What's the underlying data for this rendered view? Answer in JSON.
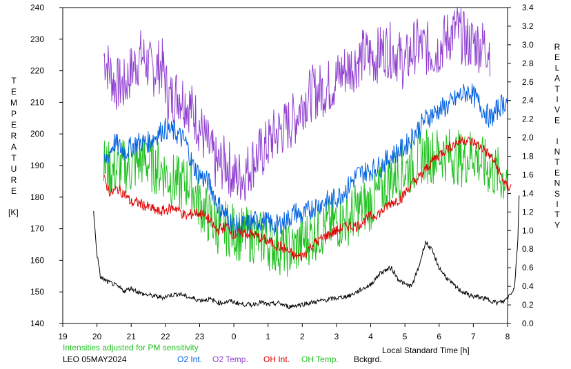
{
  "chart_data": {
    "type": "line",
    "title": "",
    "note": "Intensities adjusted for PM sensitivity",
    "station_label": "LEO 05MAY2024",
    "xlabel": "Local Standard Time [h]",
    "ylabel_left_letters": [
      "T",
      "E",
      "M",
      "P",
      "E",
      "R",
      "A",
      "T",
      "U",
      "R",
      "E"
    ],
    "ylabel_left_unit": "[K]",
    "ylabel_right_letters": [
      "R",
      "E",
      "L",
      "A",
      "T",
      "I",
      "V",
      "E",
      " ",
      "I",
      "N",
      "T",
      "E",
      "N",
      "S",
      "I",
      "T",
      "Y"
    ],
    "x_ticks": [
      "19",
      "20",
      "21",
      "22",
      "23",
      "0",
      "1",
      "2",
      "3",
      "4",
      "5",
      "6",
      "7",
      "8"
    ],
    "y_left_ticks": [
      "140",
      "150",
      "160",
      "170",
      "180",
      "190",
      "200",
      "210",
      "220",
      "230",
      "240"
    ],
    "y_right_ticks": [
      "0.0",
      "0.2",
      "0.4",
      "0.6",
      "0.8",
      "1.0",
      "1.2",
      "1.4",
      "1.6",
      "1.8",
      "2.0",
      "2.2",
      "2.4",
      "2.6",
      "2.8",
      "3.0",
      "3.2",
      "3.4"
    ],
    "xlim": [
      19,
      32
    ],
    "ylim_left": [
      140,
      240
    ],
    "ylim_right": [
      0,
      3.4
    ],
    "grid": false,
    "legend_position": "bottom",
    "series": [
      {
        "name": "O2 Int.",
        "axis": "right",
        "color": "#0060e0",
        "style": "vertical-hatch",
        "points": [
          [
            20.2,
            1.7
          ],
          [
            20.5,
            1.95
          ],
          [
            20.8,
            1.85
          ],
          [
            21.0,
            1.9
          ],
          [
            21.2,
            1.95
          ],
          [
            21.5,
            1.95
          ],
          [
            21.8,
            2.05
          ],
          [
            22.0,
            2.1
          ],
          [
            22.3,
            2.05
          ],
          [
            22.6,
            1.95
          ],
          [
            22.8,
            1.7
          ],
          [
            23.0,
            1.6
          ],
          [
            23.3,
            1.5
          ],
          [
            23.5,
            1.3
          ],
          [
            23.8,
            1.15
          ],
          [
            24.0,
            1.05
          ],
          [
            24.3,
            1.05
          ],
          [
            24.6,
            1.1
          ],
          [
            24.9,
            1.1
          ],
          [
            25.2,
            1.05
          ],
          [
            25.5,
            1.1
          ],
          [
            25.8,
            1.2
          ],
          [
            26.0,
            1.15
          ],
          [
            26.3,
            1.25
          ],
          [
            26.6,
            1.3
          ],
          [
            27.0,
            1.35
          ],
          [
            27.3,
            1.45
          ],
          [
            27.6,
            1.6
          ],
          [
            28.0,
            1.65
          ],
          [
            28.3,
            1.7
          ],
          [
            28.6,
            1.8
          ],
          [
            29.0,
            1.9
          ],
          [
            29.3,
            2.05
          ],
          [
            29.6,
            2.2
          ],
          [
            30.0,
            2.3
          ],
          [
            30.3,
            2.35
          ],
          [
            30.6,
            2.45
          ],
          [
            30.9,
            2.5
          ],
          [
            31.2,
            2.35
          ],
          [
            31.5,
            2.2
          ],
          [
            31.8,
            2.35
          ],
          [
            32.0,
            2.4
          ]
        ]
      },
      {
        "name": "O2 Temp.",
        "axis": "left",
        "color": "#9040d0",
        "style": "vertical-hatch",
        "points": [
          [
            20.2,
            225
          ],
          [
            20.5,
            216
          ],
          [
            20.8,
            215
          ],
          [
            21.0,
            220
          ],
          [
            21.3,
            225
          ],
          [
            21.6,
            220
          ],
          [
            21.9,
            222
          ],
          [
            22.1,
            211
          ],
          [
            22.4,
            213
          ],
          [
            22.7,
            209
          ],
          [
            22.9,
            205
          ],
          [
            23.2,
            197
          ],
          [
            23.5,
            190
          ],
          [
            23.8,
            191
          ],
          [
            24.0,
            186
          ],
          [
            24.3,
            187
          ],
          [
            24.6,
            192
          ],
          [
            24.9,
            195
          ],
          [
            25.2,
            200
          ],
          [
            25.5,
            202
          ],
          [
            25.8,
            205
          ],
          [
            26.0,
            210
          ],
          [
            26.3,
            213
          ],
          [
            26.6,
            214
          ],
          [
            26.9,
            216
          ],
          [
            27.2,
            220
          ],
          [
            27.5,
            222
          ],
          [
            27.8,
            225
          ],
          [
            28.1,
            224
          ],
          [
            28.4,
            227
          ],
          [
            28.7,
            226
          ],
          [
            29.0,
            222
          ],
          [
            29.3,
            228
          ],
          [
            29.6,
            227
          ],
          [
            29.9,
            226
          ],
          [
            30.2,
            230
          ],
          [
            30.5,
            233
          ],
          [
            30.8,
            229
          ],
          [
            31.0,
            229
          ],
          [
            31.2,
            228
          ],
          [
            31.4,
            228
          ],
          [
            31.5,
            227
          ]
        ]
      },
      {
        "name": "OH Int.",
        "axis": "right",
        "color": "#e00000",
        "style": "line",
        "points": [
          [
            20.2,
            1.55
          ],
          [
            20.4,
            1.4
          ],
          [
            20.6,
            1.45
          ],
          [
            20.8,
            1.4
          ],
          [
            21.0,
            1.3
          ],
          [
            21.2,
            1.3
          ],
          [
            21.5,
            1.25
          ],
          [
            21.8,
            1.2
          ],
          [
            22.0,
            1.22
          ],
          [
            22.3,
            1.25
          ],
          [
            22.6,
            1.15
          ],
          [
            22.9,
            1.2
          ],
          [
            23.2,
            1.15
          ],
          [
            23.5,
            1.0
          ],
          [
            23.8,
            1.05
          ],
          [
            24.0,
            0.95
          ],
          [
            24.3,
            0.98
          ],
          [
            24.6,
            0.95
          ],
          [
            24.9,
            0.9
          ],
          [
            25.2,
            0.85
          ],
          [
            25.5,
            0.8
          ],
          [
            25.8,
            0.72
          ],
          [
            26.0,
            0.72
          ],
          [
            26.3,
            0.85
          ],
          [
            26.6,
            0.92
          ],
          [
            27.0,
            1.0
          ],
          [
            27.3,
            1.05
          ],
          [
            27.6,
            1.05
          ],
          [
            28.0,
            1.15
          ],
          [
            28.3,
            1.2
          ],
          [
            28.6,
            1.3
          ],
          [
            28.9,
            1.35
          ],
          [
            29.2,
            1.5
          ],
          [
            29.5,
            1.6
          ],
          [
            29.8,
            1.75
          ],
          [
            30.1,
            1.85
          ],
          [
            30.4,
            1.92
          ],
          [
            30.7,
            1.98
          ],
          [
            31.0,
            1.95
          ],
          [
            31.3,
            1.88
          ],
          [
            31.6,
            1.75
          ],
          [
            31.8,
            1.6
          ],
          [
            32.0,
            1.45
          ],
          [
            32.1,
            1.5
          ]
        ]
      },
      {
        "name": "OH Temp.",
        "axis": "left",
        "color": "#20c020",
        "style": "vertical-hatch",
        "points": [
          [
            20.2,
            190
          ],
          [
            20.5,
            188
          ],
          [
            20.8,
            190
          ],
          [
            21.0,
            189
          ],
          [
            21.3,
            192
          ],
          [
            21.6,
            190
          ],
          [
            21.9,
            189
          ],
          [
            22.1,
            186
          ],
          [
            22.4,
            184
          ],
          [
            22.7,
            185
          ],
          [
            23.0,
            178
          ],
          [
            23.3,
            173
          ],
          [
            23.6,
            170
          ],
          [
            23.9,
            170
          ],
          [
            24.2,
            168
          ],
          [
            24.5,
            168
          ],
          [
            24.8,
            167
          ],
          [
            25.1,
            165
          ],
          [
            25.4,
            164
          ],
          [
            25.7,
            163
          ],
          [
            26.0,
            166
          ],
          [
            26.3,
            168
          ],
          [
            26.6,
            170
          ],
          [
            27.0,
            172
          ],
          [
            27.3,
            173
          ],
          [
            27.6,
            176
          ],
          [
            28.0,
            178
          ],
          [
            28.3,
            182
          ],
          [
            28.6,
            186
          ],
          [
            28.9,
            188
          ],
          [
            29.2,
            190
          ],
          [
            29.5,
            193
          ],
          [
            29.8,
            193
          ],
          [
            30.1,
            194
          ],
          [
            30.4,
            193
          ],
          [
            30.7,
            192
          ],
          [
            31.0,
            194
          ],
          [
            31.3,
            190
          ],
          [
            31.6,
            188
          ],
          [
            31.9,
            186
          ],
          [
            32.0,
            188
          ]
        ]
      },
      {
        "name": "Bckgrd.",
        "axis": "right",
        "color": "#000000",
        "style": "line",
        "points": [
          [
            19.9,
            1.2
          ],
          [
            20.0,
            0.75
          ],
          [
            20.1,
            0.5
          ],
          [
            20.3,
            0.45
          ],
          [
            20.5,
            0.42
          ],
          [
            20.8,
            0.35
          ],
          [
            21.0,
            0.38
          ],
          [
            21.3,
            0.32
          ],
          [
            21.6,
            0.3
          ],
          [
            21.9,
            0.28
          ],
          [
            22.1,
            0.3
          ],
          [
            22.4,
            0.32
          ],
          [
            22.7,
            0.28
          ],
          [
            23.0,
            0.25
          ],
          [
            23.3,
            0.26
          ],
          [
            23.6,
            0.22
          ],
          [
            23.9,
            0.24
          ],
          [
            24.2,
            0.21
          ],
          [
            24.5,
            0.2
          ],
          [
            24.8,
            0.23
          ],
          [
            25.0,
            0.2
          ],
          [
            25.3,
            0.22
          ],
          [
            25.6,
            0.18
          ],
          [
            25.9,
            0.2
          ],
          [
            26.2,
            0.22
          ],
          [
            26.5,
            0.24
          ],
          [
            26.8,
            0.26
          ],
          [
            27.1,
            0.28
          ],
          [
            27.4,
            0.3
          ],
          [
            27.7,
            0.36
          ],
          [
            28.0,
            0.42
          ],
          [
            28.3,
            0.55
          ],
          [
            28.6,
            0.6
          ],
          [
            28.8,
            0.48
          ],
          [
            29.0,
            0.42
          ],
          [
            29.2,
            0.4
          ],
          [
            29.4,
            0.6
          ],
          [
            29.6,
            0.88
          ],
          [
            29.8,
            0.78
          ],
          [
            30.0,
            0.6
          ],
          [
            30.2,
            0.5
          ],
          [
            30.4,
            0.42
          ],
          [
            30.6,
            0.36
          ],
          [
            30.9,
            0.3
          ],
          [
            31.2,
            0.28
          ],
          [
            31.5,
            0.25
          ],
          [
            31.7,
            0.22
          ],
          [
            31.9,
            0.24
          ],
          [
            32.0,
            0.28
          ],
          [
            32.2,
            0.38
          ],
          [
            32.3,
            0.9
          ],
          [
            32.35,
            1.55
          ]
        ]
      }
    ]
  }
}
